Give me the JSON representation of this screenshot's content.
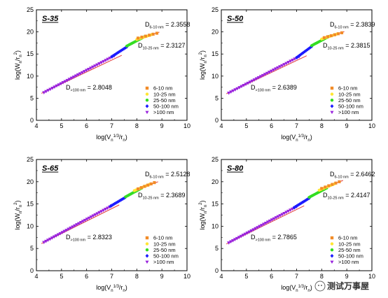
{
  "legend_entries": [
    {
      "label": "6-10 nm",
      "color": "#f28c28",
      "marker": "square"
    },
    {
      "label": "10-25 nm",
      "color": "#ffe633",
      "marker": "circle"
    },
    {
      "label": "25-50 nm",
      "color": "#33dd22",
      "marker": "circle"
    },
    {
      "label": "50-100 nm",
      "color": "#1a1aff",
      "marker": "diamond"
    },
    {
      "label": ">100 nm",
      "color": "#9922dd",
      "marker": "triangle-down"
    }
  ],
  "watermark": {
    "text": "测试万事屋"
  },
  "chart_data": [
    {
      "type": "scatter",
      "panel": "S-35",
      "xlabel": "log(Vn1/3/rn)",
      "ylabel": "log(Wn/rn2)",
      "xlim": [
        4,
        10
      ],
      "ylim": [
        0,
        25
      ],
      "xticks": [
        4,
        5,
        6,
        7,
        8,
        9,
        10
      ],
      "yticks": [
        0,
        5,
        10,
        15,
        20,
        25
      ],
      "series": [
        {
          "name": "6-10 nm",
          "x_range": [
            8.05,
            8.8
          ],
          "y_range": [
            18.6,
            19.7
          ]
        },
        {
          "name": "10-25 nm",
          "x_range": [
            8.0,
            8.6
          ],
          "y_range": [
            18.3,
            19.4
          ]
        },
        {
          "name": "25-50 nm",
          "x_range": [
            7.6,
            8.3
          ],
          "y_range": [
            16.8,
            18.9
          ]
        },
        {
          "name": "50-100 nm",
          "x_range": [
            7.0,
            7.6
          ],
          "y_range": [
            14.4,
            16.6
          ]
        },
        {
          "name": ">100 nm",
          "x_range": [
            4.3,
            7.1
          ],
          "y_range": [
            6.3,
            14.6
          ]
        }
      ],
      "fits": [
        {
          "x": [
            7.95,
            8.9
          ],
          "y": [
            18.3,
            19.95
          ]
        },
        {
          "x": [
            4.2,
            7.4
          ],
          "y": [
            6.1,
            14.7
          ]
        }
      ],
      "annotations": [
        {
          "base": "D",
          "sub": "6-10 nm",
          "value": " = 2.3558"
        },
        {
          "base": "D",
          "sub": "10-25 nm",
          "value": " = 2.3127"
        },
        {
          "base": "D",
          "sub": ">100 nm",
          "value": " = 2.8048"
        }
      ]
    },
    {
      "type": "scatter",
      "panel": "S-50",
      "xlabel": "log(Vn1/3/rn)",
      "ylabel": "log(Wn/rn2)",
      "xlim": [
        4,
        10
      ],
      "ylim": [
        0,
        25
      ],
      "xticks": [
        4,
        5,
        6,
        7,
        8,
        9,
        10
      ],
      "yticks": [
        0,
        5,
        10,
        15,
        20,
        25
      ],
      "series": [
        {
          "name": "6-10 nm",
          "x_range": [
            8.1,
            8.8
          ],
          "y_range": [
            18.7,
            19.8
          ]
        },
        {
          "name": "10-25 nm",
          "x_range": [
            8.0,
            8.6
          ],
          "y_range": [
            18.4,
            19.5
          ]
        },
        {
          "name": "25-50 nm",
          "x_range": [
            7.6,
            8.3
          ],
          "y_range": [
            16.9,
            19.0
          ]
        },
        {
          "name": "50-100 nm",
          "x_range": [
            7.0,
            7.6
          ],
          "y_range": [
            14.2,
            16.7
          ]
        },
        {
          "name": ">100 nm",
          "x_range": [
            4.3,
            7.1
          ],
          "y_range": [
            6.2,
            14.4
          ]
        }
      ],
      "fits": [
        {
          "x": [
            7.95,
            8.9
          ],
          "y": [
            18.4,
            20.05
          ]
        },
        {
          "x": [
            4.2,
            7.4
          ],
          "y": [
            6.0,
            14.6
          ]
        }
      ],
      "annotations": [
        {
          "base": "D",
          "sub": "6-10 nm",
          "value": " = 2.3839"
        },
        {
          "base": "D",
          "sub": "10-25 nm",
          "value": " = 2.3815"
        },
        {
          "base": "D",
          "sub": ">100 nm",
          "value": " = 2.6389"
        }
      ]
    },
    {
      "type": "scatter",
      "panel": "S-65",
      "xlabel": "log(Vn1/3/rn)",
      "ylabel": "log(Wn/rn2)",
      "xlim": [
        4,
        10
      ],
      "ylim": [
        0,
        25
      ],
      "xticks": [
        4,
        5,
        6,
        7,
        8,
        9,
        10
      ],
      "yticks": [
        0,
        5,
        10,
        15,
        20,
        25
      ],
      "series": [
        {
          "name": "6-10 nm",
          "x_range": [
            8.05,
            8.7
          ],
          "y_range": [
            18.4,
            19.8
          ]
        },
        {
          "name": "10-25 nm",
          "x_range": [
            7.9,
            8.5
          ],
          "y_range": [
            18.0,
            19.4
          ]
        },
        {
          "name": "25-50 nm",
          "x_range": [
            7.55,
            8.2
          ],
          "y_range": [
            16.6,
            18.6
          ]
        },
        {
          "name": "50-100 nm",
          "x_range": [
            6.95,
            7.55
          ],
          "y_range": [
            14.5,
            16.5
          ]
        },
        {
          "name": ">100 nm",
          "x_range": [
            4.3,
            7.0
          ],
          "y_range": [
            6.4,
            14.6
          ]
        }
      ],
      "fits": [
        {
          "x": [
            7.9,
            8.85
          ],
          "y": [
            18.1,
            20.0
          ]
        },
        {
          "x": [
            4.2,
            7.3
          ],
          "y": [
            6.1,
            14.8
          ]
        }
      ],
      "annotations": [
        {
          "base": "D",
          "sub": "6-10 nm",
          "value": " = 2.5128"
        },
        {
          "base": "D",
          "sub": "10-25 nm",
          "value": " = 2.3689"
        },
        {
          "base": "D",
          "sub": ">100 nm",
          "value": " = 2.8323"
        }
      ]
    },
    {
      "type": "scatter",
      "panel": "S-80",
      "xlabel": "log(Vn1/3/rn)",
      "ylabel": "log(Wn/rn2)",
      "xlim": [
        4,
        10
      ],
      "ylim": [
        0,
        25
      ],
      "xticks": [
        4,
        5,
        6,
        7,
        8,
        9,
        10
      ],
      "yticks": [
        0,
        5,
        10,
        15,
        20,
        25
      ],
      "series": [
        {
          "name": "6-10 nm",
          "x_range": [
            8.0,
            8.7
          ],
          "y_range": [
            18.5,
            20.0
          ]
        },
        {
          "name": "10-25 nm",
          "x_range": [
            7.9,
            8.5
          ],
          "y_range": [
            18.1,
            19.5
          ]
        },
        {
          "name": "25-50 nm",
          "x_range": [
            7.5,
            8.2
          ],
          "y_range": [
            16.5,
            18.6
          ]
        },
        {
          "name": "50-100 nm",
          "x_range": [
            6.9,
            7.5
          ],
          "y_range": [
            14.2,
            16.3
          ]
        },
        {
          "name": ">100 nm",
          "x_range": [
            4.3,
            7.0
          ],
          "y_range": [
            6.3,
            14.4
          ]
        }
      ],
      "fits": [
        {
          "x": [
            7.85,
            8.85
          ],
          "y": [
            18.1,
            20.3
          ]
        },
        {
          "x": [
            4.2,
            7.3
          ],
          "y": [
            6.0,
            14.6
          ]
        }
      ],
      "annotations": [
        {
          "base": "D",
          "sub": "6-10 nm",
          "value": " = 2.6462"
        },
        {
          "base": "D",
          "sub": "10-25 nm",
          "value": " = 2.4147"
        },
        {
          "base": "D",
          "sub": ">100 nm",
          "value": " = 2.7865"
        }
      ]
    }
  ]
}
